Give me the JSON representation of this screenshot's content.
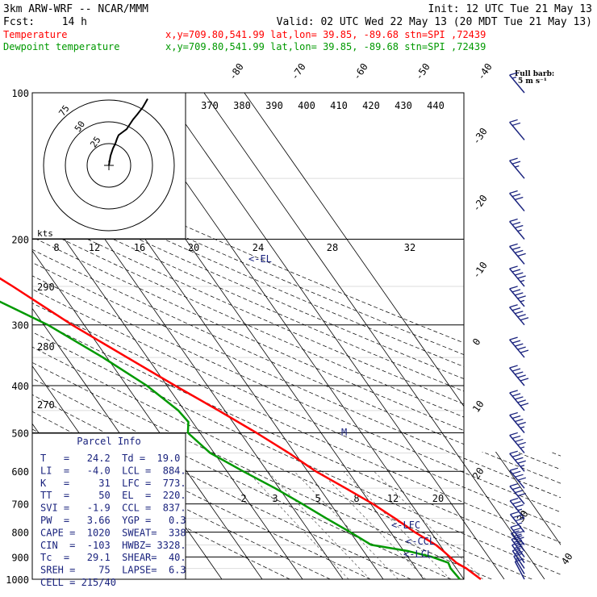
{
  "header": {
    "model": "3km ARW-WRF -- NCAR/MMM",
    "init": "Init: 12 UTC Tue 21 May 13",
    "fcst_label": "Fcst:",
    "fcst_value": "14 h",
    "valid": "Valid: 02 UTC Wed 22 May 13 (20 MDT Tue 21 May 13)"
  },
  "legend": {
    "temperature": {
      "name": "Temperature",
      "info": "x,y=709.80,541.99   lat,lon= 39.85, -89.68  stn=SPI ,72439",
      "color": "#ff0000"
    },
    "dewpoint": {
      "name": "Dewpoint temperature",
      "info": "x,y=709.80,541.99   lat,lon= 39.85, -89.68  stn=SPI ,72439",
      "color": "#009900"
    }
  },
  "barb_key": {
    "line1": "Full barb:",
    "line2": "5 m s⁻¹"
  },
  "hodograph": {
    "units": "kts",
    "ring_labels": [
      "25",
      "50",
      "75"
    ],
    "color": "#000000"
  },
  "parcel_info": {
    "title": "Parcel Info",
    "rows": [
      "T   =   24.2  Td =  19.0",
      "LI  =   -4.0  LCL =  884.",
      "K   =     31  LFC =  773.",
      "TT  =     50  EL  =  220.",
      "SVI =   -1.9  CCL =  837.",
      "PW  =   3.66  YGP =   0.3",
      "CAPE =  1020  SWEAT=  338",
      "CIN  =  -103  HWBZ= 3328.",
      "Tc  =   29.1  SHEAR=  40.",
      "SREH =    75  LAPSE=  6.3",
      "CELL = 215/40"
    ],
    "color": "#1a237e"
  },
  "markers": {
    "el": "<-EL",
    "lfc": "<-LFC",
    "ccl": "<-CCL",
    "lcl": "<-LCL",
    "m": "M"
  },
  "chart_data": {
    "type": "line",
    "title": "",
    "y_axis": {
      "name": "pressure",
      "units": "hPa",
      "scale": "log",
      "range": [
        1000,
        100
      ],
      "ticks": [
        100,
        200,
        300,
        400,
        500,
        600,
        700,
        800,
        900,
        1000
      ]
    },
    "isotherms_top": [
      "-80",
      "-70",
      "-60",
      "-50",
      "-40"
    ],
    "isotherms_right": [
      "-30",
      "-20",
      "-10",
      "0",
      "10",
      "20",
      "30",
      "40"
    ],
    "theta_labels": [
      "370",
      "380",
      "390",
      "400",
      "410",
      "420",
      "430",
      "440"
    ],
    "mixing_ratio_top": [
      "8",
      "12",
      "16",
      "20",
      "24",
      "28",
      "32"
    ],
    "mixing_ratio_bottom": [
      "2",
      "3",
      "5",
      "8",
      "12",
      "20"
    ],
    "theta_left": [
      "290",
      "280",
      "270"
    ],
    "series": [
      {
        "name": "Temperature",
        "color": "#ff0000",
        "pressure": [
          1000,
          950,
          925,
          900,
          875,
          850,
          800,
          750,
          700,
          650,
          600,
          550,
          500,
          450,
          400,
          350,
          300,
          250,
          225,
          200,
          175,
          150,
          125,
          100
        ],
        "temp": [
          24.2,
          22.5,
          21.0,
          20.4,
          19.8,
          19.0,
          16.0,
          13.5,
          10.5,
          6.5,
          2.0,
          -1.5,
          -6.0,
          -11.5,
          -18.0,
          -25.0,
          -33.0,
          -41.0,
          -46.0,
          -52.0,
          -57.5,
          -60.5,
          -62.0,
          -64.0
        ]
      },
      {
        "name": "Dewpoint temperature",
        "color": "#009900",
        "pressure": [
          1000,
          975,
          950,
          925,
          900,
          875,
          850,
          800,
          750,
          700,
          650,
          600,
          550,
          500,
          475,
          450,
          400,
          350,
          300,
          250,
          225,
          200,
          175,
          150,
          125,
          100
        ],
        "temp": [
          19.0,
          18.8,
          18.6,
          19.0,
          16.0,
          11.0,
          3.0,
          0.0,
          -3.5,
          -7.0,
          -11.0,
          -16.0,
          -21.0,
          -23.0,
          -21.0,
          -21.5,
          -25.0,
          -31.0,
          -39.0,
          -52.0,
          -58.0,
          -64.0,
          -71.0,
          -78.0,
          -84.0,
          -88.0
        ]
      }
    ],
    "hodograph_kts": {
      "u": [
        0,
        2,
        5,
        8,
        10,
        12,
        18,
        22,
        25,
        30,
        35,
        42,
        48
      ],
      "v": [
        0,
        8,
        14,
        18,
        22,
        25,
        28,
        30,
        33,
        38,
        42,
        48,
        55
      ]
    },
    "wind_barbs": [
      {
        "p": 1000,
        "dir": 200,
        "spd": 10
      },
      {
        "p": 975,
        "dir": 210,
        "spd": 15
      },
      {
        "p": 950,
        "dir": 220,
        "spd": 20
      },
      {
        "p": 925,
        "dir": 225,
        "spd": 25
      },
      {
        "p": 900,
        "dir": 230,
        "spd": 30
      },
      {
        "p": 875,
        "dir": 235,
        "spd": 30
      },
      {
        "p": 850,
        "dir": 240,
        "spd": 35
      },
      {
        "p": 800,
        "dir": 245,
        "spd": 35
      },
      {
        "p": 750,
        "dir": 250,
        "spd": 35
      },
      {
        "p": 700,
        "dir": 255,
        "spd": 40
      },
      {
        "p": 650,
        "dir": 255,
        "spd": 40
      },
      {
        "p": 600,
        "dir": 260,
        "spd": 45
      },
      {
        "p": 550,
        "dir": 260,
        "spd": 45
      },
      {
        "p": 500,
        "dir": 260,
        "spd": 45
      },
      {
        "p": 450,
        "dir": 260,
        "spd": 50
      },
      {
        "p": 400,
        "dir": 265,
        "spd": 50
      },
      {
        "p": 350,
        "dir": 265,
        "spd": 50
      },
      {
        "p": 300,
        "dir": 265,
        "spd": 50
      },
      {
        "p": 275,
        "dir": 265,
        "spd": 45
      },
      {
        "p": 250,
        "dir": 265,
        "spd": 45
      },
      {
        "p": 225,
        "dir": 265,
        "spd": 40
      },
      {
        "p": 200,
        "dir": 265,
        "spd": 35
      },
      {
        "p": 175,
        "dir": 265,
        "spd": 30
      },
      {
        "p": 150,
        "dir": 265,
        "spd": 25
      },
      {
        "p": 125,
        "dir": 265,
        "spd": 20
      },
      {
        "p": 100,
        "dir": 265,
        "spd": 15
      }
    ]
  }
}
